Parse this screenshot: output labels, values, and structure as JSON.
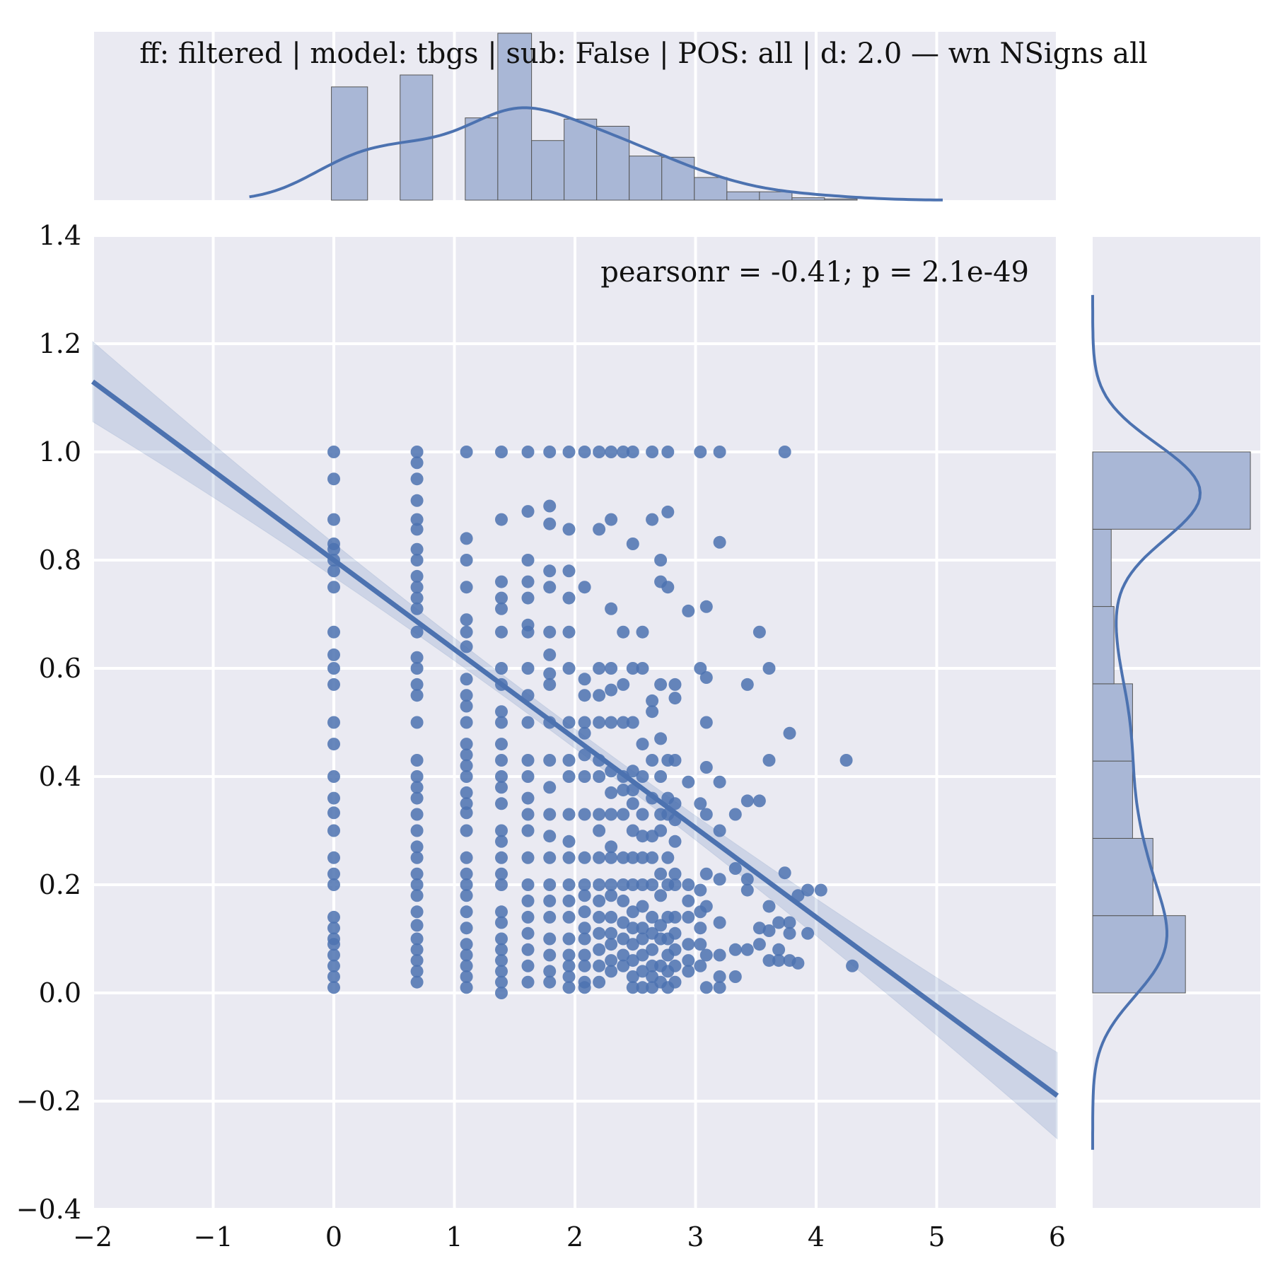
{
  "chart_data": {
    "type": "scatter",
    "title": "ff: filtered | model: tbgs | sub: False | POS: all | d: 2.0 — wn NSigns all",
    "annotation": "pearsonr = -0.41; p = 2.1e-49",
    "xlabel": "",
    "ylabel": "",
    "xlim": [
      -2,
      6
    ],
    "ylim": [
      -0.4,
      1.4
    ],
    "x_ticks": [
      "−2",
      "−1",
      "0",
      "1",
      "2",
      "3",
      "4",
      "5",
      "6"
    ],
    "y_ticks": [
      "−0.4",
      "−0.2",
      "0.0",
      "0.2",
      "0.4",
      "0.6",
      "0.8",
      "1.0",
      "1.2",
      "1.4"
    ],
    "x_tick_values": [
      -2,
      -1,
      0,
      1,
      2,
      3,
      4,
      5,
      6
    ],
    "y_tick_values": [
      -0.4,
      -0.2,
      0.0,
      0.2,
      0.4,
      0.6,
      0.8,
      1.0,
      1.2,
      1.4
    ],
    "grid": true,
    "regression": {
      "slope": -0.165,
      "intercept": 0.8,
      "ci_halfwidth_at_ends": 0.08
    },
    "colors": {
      "marker": "#4c72b0",
      "background": "#eaeaf2",
      "grid": "#ffffff",
      "bar_fill": "#a9b7d6",
      "bar_edge": "#555555"
    },
    "columns": [
      {
        "x": 0.0,
        "y": [
          1.0,
          0.95,
          0.875,
          0.83,
          0.82,
          0.8,
          0.78,
          0.75,
          0.667,
          0.625,
          0.6,
          0.57,
          0.5,
          0.46,
          0.4,
          0.36,
          0.333,
          0.3,
          0.25,
          0.22,
          0.2,
          0.14,
          0.12,
          0.1,
          0.09,
          0.07,
          0.05,
          0.03,
          0.01
        ]
      },
      {
        "x": 0.69,
        "y": [
          1.0,
          0.98,
          0.95,
          0.91,
          0.875,
          0.857,
          0.82,
          0.8,
          0.77,
          0.75,
          0.73,
          0.71,
          0.667,
          0.62,
          0.6,
          0.57,
          0.55,
          0.5,
          0.43,
          0.4,
          0.38,
          0.36,
          0.33,
          0.3,
          0.27,
          0.25,
          0.22,
          0.2,
          0.18,
          0.15,
          0.125,
          0.1,
          0.08,
          0.06,
          0.04,
          0.02
        ]
      },
      {
        "x": 1.1,
        "y": [
          1.0,
          0.84,
          0.8,
          0.75,
          0.69,
          0.667,
          0.64,
          0.58,
          0.55,
          0.53,
          0.5,
          0.46,
          0.44,
          0.42,
          0.4,
          0.37,
          0.35,
          0.333,
          0.3,
          0.25,
          0.22,
          0.2,
          0.18,
          0.15,
          0.12,
          0.09,
          0.07,
          0.05,
          0.03,
          0.01
        ]
      },
      {
        "x": 1.39,
        "y": [
          1.0,
          0.875,
          0.76,
          0.73,
          0.71,
          0.667,
          0.6,
          0.57,
          0.52,
          0.5,
          0.46,
          0.43,
          0.4,
          0.38,
          0.35,
          0.3,
          0.28,
          0.25,
          0.22,
          0.2,
          0.15,
          0.13,
          0.1,
          0.08,
          0.06,
          0.04,
          0.02,
          0.0
        ]
      },
      {
        "x": 1.61,
        "y": [
          1.0,
          0.89,
          0.8,
          0.76,
          0.73,
          0.68,
          0.667,
          0.6,
          0.55,
          0.5,
          0.43,
          0.4,
          0.36,
          0.33,
          0.3,
          0.25,
          0.2,
          0.17,
          0.14,
          0.11,
          0.08,
          0.05,
          0.02
        ]
      },
      {
        "x": 1.79,
        "y": [
          1.0,
          0.9,
          0.867,
          0.78,
          0.75,
          0.667,
          0.625,
          0.59,
          0.57,
          0.5,
          0.43,
          0.38,
          0.33,
          0.29,
          0.25,
          0.2,
          0.17,
          0.14,
          0.1,
          0.07,
          0.04,
          0.02
        ]
      },
      {
        "x": 1.95,
        "y": [
          1.0,
          0.857,
          0.78,
          0.73,
          0.667,
          0.6,
          0.5,
          0.43,
          0.4,
          0.33,
          0.28,
          0.25,
          0.2,
          0.17,
          0.14,
          0.1,
          0.07,
          0.05,
          0.03,
          0.01
        ]
      },
      {
        "x": 2.08,
        "y": [
          1.0,
          0.75,
          0.58,
          0.55,
          0.5,
          0.48,
          0.44,
          0.4,
          0.33,
          0.25,
          0.2,
          0.18,
          0.15,
          0.12,
          0.1,
          0.07,
          0.05,
          0.02,
          0.01
        ]
      },
      {
        "x": 2.2,
        "y": [
          1.0,
          0.857,
          0.6,
          0.55,
          0.5,
          0.43,
          0.4,
          0.33,
          0.3,
          0.25,
          0.2,
          0.17,
          0.14,
          0.11,
          0.08,
          0.05,
          0.02
        ]
      },
      {
        "x": 2.3,
        "y": [
          1.0,
          0.875,
          0.71,
          0.6,
          0.56,
          0.5,
          0.41,
          0.37,
          0.33,
          0.27,
          0.25,
          0.2,
          0.18,
          0.14,
          0.11,
          0.09,
          0.06,
          0.04
        ]
      },
      {
        "x": 2.4,
        "y": [
          1.0,
          0.667,
          0.57,
          0.5,
          0.4,
          0.375,
          0.33,
          0.25,
          0.2,
          0.17,
          0.13,
          0.1,
          0.07,
          0.05
        ]
      },
      {
        "x": 2.48,
        "y": [
          1.0,
          0.83,
          0.6,
          0.5,
          0.41,
          0.375,
          0.35,
          0.3,
          0.25,
          0.2,
          0.15,
          0.12,
          0.09,
          0.06,
          0.03,
          0.01
        ]
      },
      {
        "x": 2.56,
        "y": [
          0.667,
          0.6,
          0.46,
          0.4,
          0.33,
          0.29,
          0.25,
          0.2,
          0.16,
          0.12,
          0.1,
          0.07,
          0.04,
          0.01
        ]
      },
      {
        "x": 2.64,
        "y": [
          1.0,
          0.875,
          0.54,
          0.52,
          0.43,
          0.36,
          0.29,
          0.25,
          0.2,
          0.14,
          0.11,
          0.08,
          0.05,
          0.03,
          0.01
        ]
      },
      {
        "x": 2.71,
        "y": [
          0.8,
          0.76,
          0.57,
          0.47,
          0.4,
          0.33,
          0.3,
          0.22,
          0.18,
          0.125,
          0.1,
          0.05,
          0.02
        ]
      },
      {
        "x": 2.77,
        "y": [
          1.0,
          0.889,
          0.75,
          0.43,
          0.36,
          0.33,
          0.25,
          0.2,
          0.14,
          0.1,
          0.07,
          0.04,
          0.01
        ]
      },
      {
        "x": 2.83,
        "y": [
          0.57,
          0.545,
          0.43,
          0.35,
          0.32,
          0.28,
          0.22,
          0.2,
          0.14,
          0.11,
          0.08,
          0.05,
          0.02
        ]
      },
      {
        "x": 2.94,
        "y": [
          0.706,
          0.39,
          0.2,
          0.17,
          0.14,
          0.09,
          0.06,
          0.04
        ]
      },
      {
        "x": 3.04,
        "y": [
          1.0,
          0.6,
          0.35,
          0.19,
          0.15,
          0.12,
          0.09,
          0.05
        ]
      },
      {
        "x": 3.09,
        "y": [
          0.714,
          0.583,
          0.5,
          0.417,
          0.33,
          0.22,
          0.16,
          0.07,
          0.01
        ]
      },
      {
        "x": 3.2,
        "y": [
          1.0,
          0.833,
          0.39,
          0.3,
          0.21,
          0.13,
          0.07,
          0.03,
          0.01
        ]
      },
      {
        "x": 3.33,
        "y": [
          0.33,
          0.23,
          0.08,
          0.03
        ]
      },
      {
        "x": 3.43,
        "y": [
          0.57,
          0.355,
          0.21,
          0.19,
          0.08
        ]
      },
      {
        "x": 3.53,
        "y": [
          0.667,
          0.355,
          0.12,
          0.09
        ]
      },
      {
        "x": 3.61,
        "y": [
          0.6,
          0.43,
          0.16,
          0.115,
          0.06
        ]
      },
      {
        "x": 3.69,
        "y": [
          0.13,
          0.08,
          0.06
        ]
      },
      {
        "x": 3.74,
        "y": [
          1.0,
          0.222
        ]
      },
      {
        "x": 3.78,
        "y": [
          0.48,
          0.13,
          0.11,
          0.06
        ]
      },
      {
        "x": 3.85,
        "y": [
          0.18,
          0.055
        ]
      },
      {
        "x": 3.93,
        "y": [
          0.19,
          0.11
        ]
      },
      {
        "x": 4.04,
        "y": [
          0.19
        ]
      },
      {
        "x": 4.25,
        "y": [
          0.43
        ]
      },
      {
        "x": 4.3,
        "y": [
          0.05
        ]
      }
    ],
    "marginal_x": {
      "bin_edges": [
        -0.3,
        -0.02,
        0.28,
        0.55,
        0.82,
        1.09,
        1.36,
        1.64,
        1.91,
        2.18,
        2.45,
        2.72,
        2.99,
        3.26,
        3.53,
        3.8,
        4.07,
        4.34
      ],
      "counts": [
        0,
        95,
        0,
        105,
        0,
        69,
        140,
        50,
        68,
        62,
        37,
        36,
        19,
        7,
        7,
        2,
        1
      ],
      "kde_range": [
        -0.7,
        5.05
      ]
    },
    "marginal_y": {
      "bin_edges": [
        0.0,
        0.1429,
        0.2857,
        0.4286,
        0.5714,
        0.7143,
        0.8571,
        1.0
      ],
      "counts": [
        100,
        65,
        43,
        43,
        23,
        20,
        170
      ],
      "kde_range": [
        -0.29,
        1.29
      ]
    }
  }
}
